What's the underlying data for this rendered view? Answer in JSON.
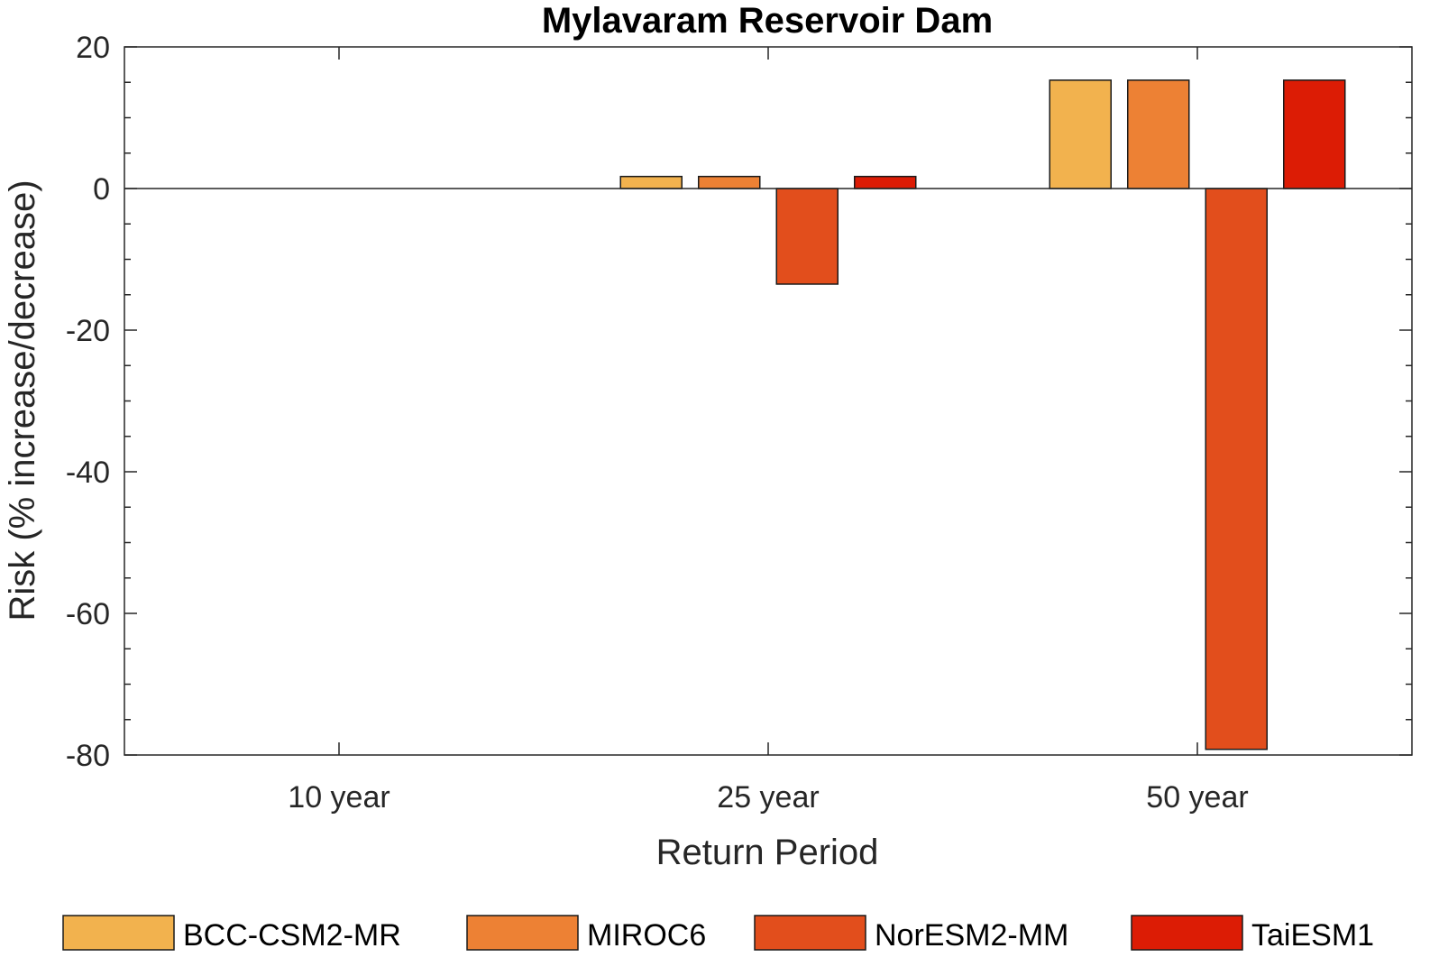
{
  "chart_data": {
    "type": "bar",
    "title": "Mylavaram Reservoir Dam",
    "xlabel": "Return Period",
    "ylabel": "Risk (% increase/decrease)",
    "categories": [
      "10 year",
      "25 year",
      "50 year"
    ],
    "ylim": [
      -80,
      20
    ],
    "yticks": [
      20,
      0,
      -20,
      -40,
      -60,
      -80
    ],
    "grid": false,
    "legend_position": "bottom",
    "series": [
      {
        "name": "BCC-CSM2-MR",
        "color": "#f2b24e",
        "values": [
          0,
          1.7,
          15.3
        ]
      },
      {
        "name": "MIROC6",
        "color": "#ed8134",
        "values": [
          0,
          1.7,
          15.3
        ]
      },
      {
        "name": "NorESM2-MM",
        "color": "#e24e1c",
        "values": [
          0,
          -13.5,
          -79.2
        ]
      },
      {
        "name": "TaiESM1",
        "color": "#dc1c05",
        "values": [
          0,
          1.7,
          15.3
        ]
      }
    ]
  }
}
